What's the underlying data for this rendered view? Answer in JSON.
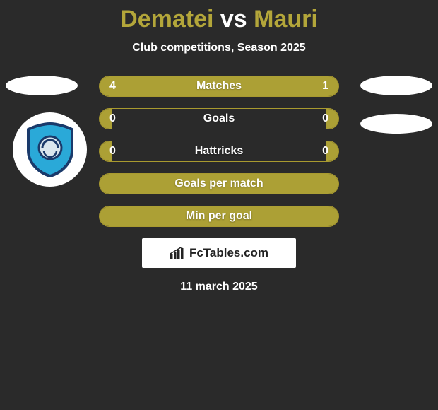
{
  "title_left": "Dematei",
  "title_mid": " vs ",
  "title_right": "Mauri",
  "title_color_left": "#b3a63a",
  "title_color_mid": "#ffffff",
  "title_color_right": "#b3a63a",
  "subtitle": "Club competitions, Season 2025",
  "date": "11 march 2025",
  "branding_text": "FcTables.com",
  "bar_color": "#aca035",
  "bar_border": "#a99a2f",
  "background": "#2a2a2a",
  "bars": [
    {
      "label": "Matches",
      "left_val": "4",
      "right_val": "1",
      "left_pct": 80,
      "right_pct": 20,
      "show_vals": true,
      "full": false
    },
    {
      "label": "Goals",
      "left_val": "0",
      "right_val": "0",
      "left_pct": 5,
      "right_pct": 5,
      "show_vals": true,
      "full": false
    },
    {
      "label": "Hattricks",
      "left_val": "0",
      "right_val": "0",
      "left_pct": 5,
      "right_pct": 5,
      "show_vals": true,
      "full": false
    },
    {
      "label": "Goals per match",
      "left_val": "",
      "right_val": "",
      "left_pct": 0,
      "right_pct": 0,
      "show_vals": false,
      "full": true
    },
    {
      "label": "Min per goal",
      "left_val": "",
      "right_val": "",
      "left_pct": 0,
      "right_pct": 0,
      "show_vals": false,
      "full": true
    }
  ],
  "club_logo": {
    "shield_fill": "#2aa9d8",
    "shield_stroke": "#1a3a6b",
    "inner_circle": "#d9e6ee"
  }
}
